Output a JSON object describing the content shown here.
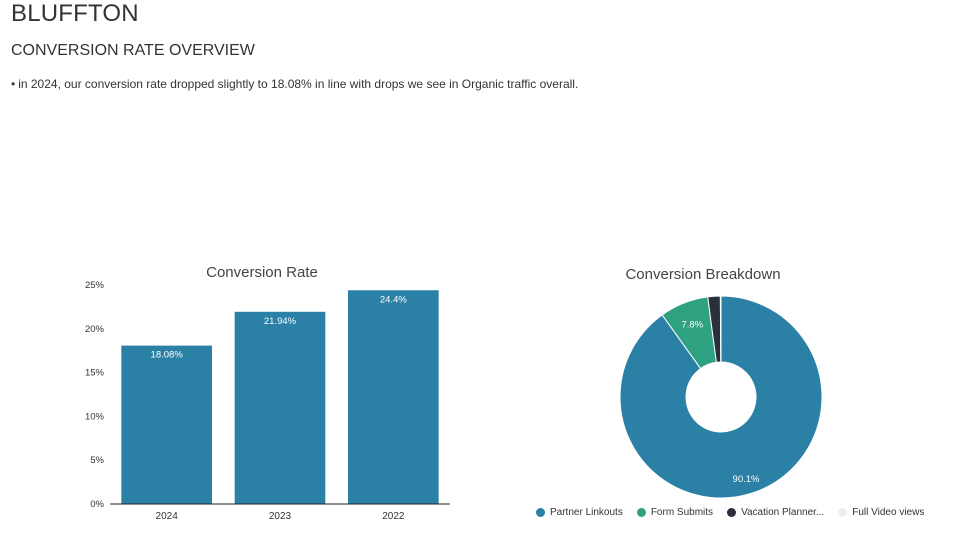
{
  "page": {
    "title": "BLUFFTON",
    "subtitle": "CONVERSION RATE OVERVIEW",
    "bullet": "in 2024, our conversion rate dropped slightly to 18.08% in line with drops we see in Organic traffic overall."
  },
  "chart_data": [
    {
      "type": "bar",
      "title": "Conversion Rate",
      "categories": [
        "2024",
        "2023",
        "2022"
      ],
      "values": [
        18.08,
        21.94,
        24.4
      ],
      "value_labels": [
        "18.08%",
        "21.94%",
        "24.4%"
      ],
      "ylim": [
        0,
        25
      ],
      "yticks": [
        0,
        5,
        10,
        15,
        20,
        25
      ],
      "ytick_labels": [
        "0%",
        "5%",
        "10%",
        "15%",
        "20%",
        "25%"
      ],
      "xlabel": "",
      "ylabel": "",
      "grid": false,
      "color": "#2b80a6"
    },
    {
      "type": "pie",
      "subtype": "donut",
      "title": "Conversion Breakdown",
      "labels": [
        "Partner Linkouts",
        "Form Submits",
        "Vacation Planner...",
        "Full Video views"
      ],
      "values": [
        90.1,
        7.8,
        2.0,
        0.1
      ],
      "value_labels": [
        "90.1%",
        "7.8%",
        "",
        ""
      ],
      "colors": [
        "#2b80a6",
        "#2ea181",
        "#2a2f3a",
        "#eeeeee"
      ],
      "legend": "bottom"
    }
  ]
}
